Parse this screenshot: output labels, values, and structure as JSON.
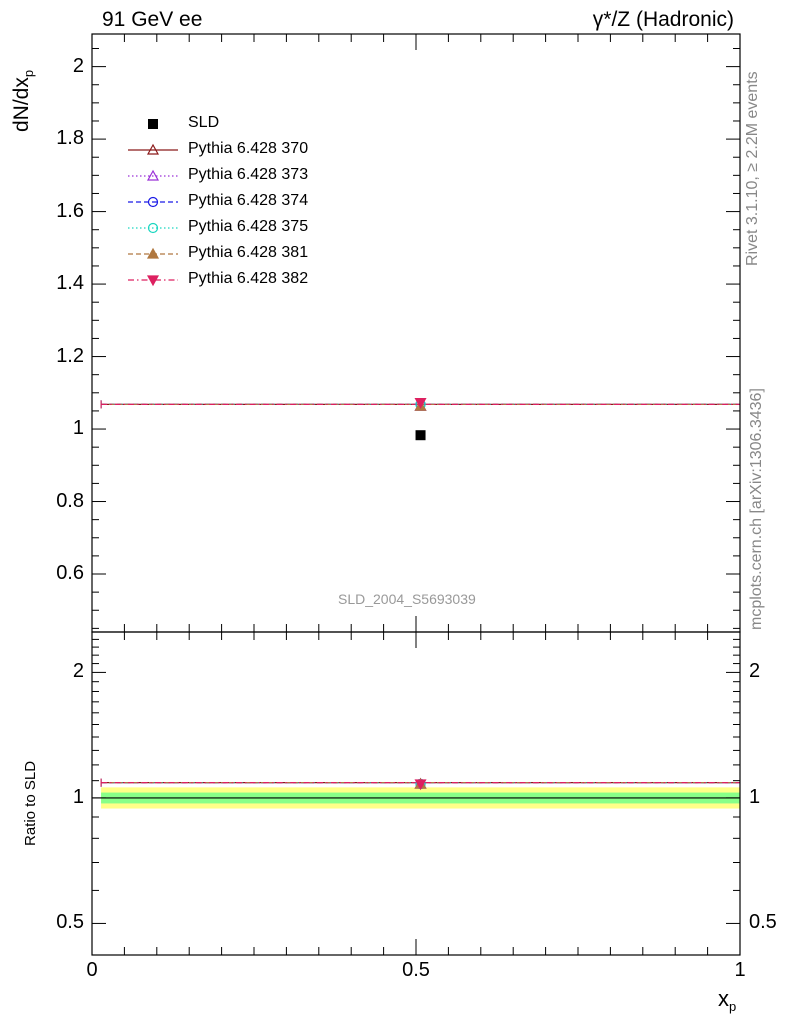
{
  "header": {
    "left_title": "91 GeV ee",
    "right_title": "γ*/Z (Hadronic)"
  },
  "side_labels": {
    "rivet": "Rivet 3.1.10, ≥ 2.2M events",
    "mcplots": "mcplots.cern.ch [arXiv:1306.3436]"
  },
  "analysis_id": "SLD_2004_S5693039",
  "axes": {
    "main_ylabel_main": "dN/dx",
    "main_ylabel_sub": "p",
    "ratio_ylabel": "Ratio to SLD",
    "xlabel_main": "x",
    "xlabel_sub": "p"
  },
  "chart_data": [
    {
      "type": "scatter",
      "panel": "main",
      "xlim": [
        0,
        1
      ],
      "ylim": [
        0.44,
        2.09
      ],
      "yticks": [
        0.6,
        0.8,
        1,
        1.2,
        1.4,
        1.6,
        1.8,
        2
      ],
      "ytick_labels": [
        "0.6",
        "0.8",
        "1",
        "1.2",
        "1.4",
        "1.6",
        "1.8",
        "2"
      ],
      "legend_position": "top-left",
      "data": {
        "name": "SLD",
        "x": [
          0.507
        ],
        "y": [
          0.983
        ]
      },
      "series": [
        {
          "name": "Pythia 6.428 370",
          "color": "#8b1a1a",
          "marker": "triangle-up-open",
          "dash": "solid",
          "x_range": [
            0.014,
            1.0
          ],
          "y": 1.068,
          "marker_y": 1.063
        },
        {
          "name": "Pythia 6.428 373",
          "color": "#9a30d8",
          "marker": "triangle-up-open",
          "dash": "dotted",
          "x_range": [
            0.014,
            1.0
          ],
          "y": 1.068,
          "marker_y": 1.063
        },
        {
          "name": "Pythia 6.428 374",
          "color": "#1a1ae6",
          "marker": "circle-open",
          "dash": "dashed",
          "x_range": [
            0.014,
            1.0
          ],
          "y": 1.068,
          "marker_y": 1.068
        },
        {
          "name": "Pythia 6.428 375",
          "color": "#1ad6c0",
          "marker": "circle-open",
          "dash": "dotted",
          "x_range": [
            0.014,
            1.0
          ],
          "y": 1.068,
          "marker_y": 1.068
        },
        {
          "name": "Pythia 6.428 381",
          "color": "#b07840",
          "marker": "triangle-up-filled",
          "dash": "dashed",
          "x_range": [
            0.014,
            1.0
          ],
          "y": 1.068,
          "marker_y": 1.063
        },
        {
          "name": "Pythia 6.428 382",
          "color": "#dd2060",
          "marker": "triangle-down-filled",
          "dash": "dashdot",
          "x_range": [
            0.014,
            1.0
          ],
          "y": 1.068,
          "marker_y": 1.073
        }
      ]
    },
    {
      "type": "line",
      "panel": "ratio",
      "xlim": [
        0,
        1
      ],
      "ylim": [
        0.42,
        2.5
      ],
      "log_scale_y": true,
      "yticks": [
        0.5,
        1,
        2
      ],
      "ytick_labels": [
        "0.5",
        "1",
        "2"
      ],
      "xticks": [
        0,
        0.5,
        1
      ],
      "xtick_labels": [
        "0",
        "0.5",
        "1"
      ],
      "reference_line": 1.0,
      "bands": [
        {
          "name": "outer",
          "color": "#ffff88",
          "range": [
            0.943,
            1.06
          ]
        },
        {
          "name": "inner",
          "color": "#88ff88",
          "range": [
            0.97,
            1.03
          ]
        }
      ],
      "ratio_value": 1.088,
      "ratio_marker_value": 1.08,
      "x_range": [
        0.014,
        1.0
      ],
      "marker_x": 0.507
    }
  ]
}
